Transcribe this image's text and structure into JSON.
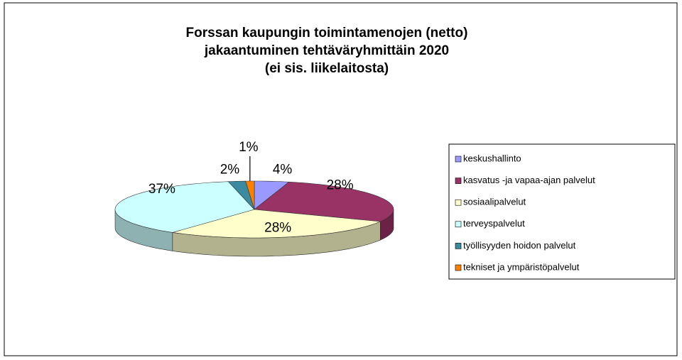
{
  "chart_data": {
    "type": "pie",
    "title": [
      "Forssan kaupungin toimintamenojen (netto)",
      "jakaantuminen tehtäväryhmittäin 2020",
      "(ei sis. liikelaitosta)"
    ],
    "categories": [
      "keskushallinto",
      "kasvatus -ja vapaa-ajan palvelut",
      "sosiaalipalvelut",
      "terveyspalvelut",
      "työllisyyden hoidon palvelut",
      "tekniset  ja ympäristöpalvelut"
    ],
    "values": [
      4,
      28,
      28,
      37,
      2,
      1
    ],
    "value_labels": [
      "4%",
      "28%",
      "28%",
      "37%",
      "2%",
      "1%"
    ],
    "colors": [
      "#9999ff",
      "#993366",
      "#ffffcc",
      "#ccffff",
      "#3a8aa0",
      "#ff8000"
    ],
    "legend": "right"
  }
}
